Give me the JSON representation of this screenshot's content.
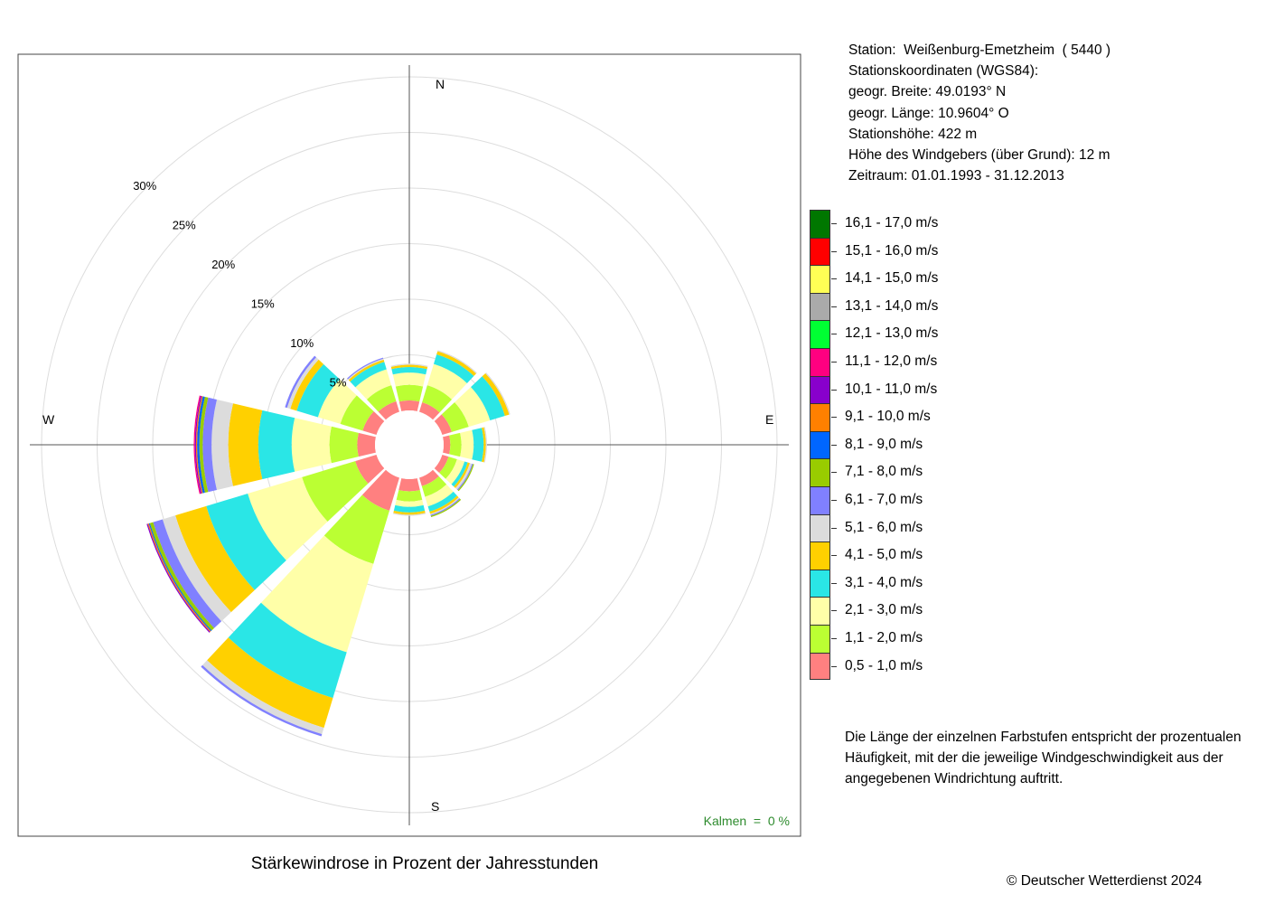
{
  "station_info": {
    "line1": "Station:  Weißenburg-Emetzheim  ( 5440 )",
    "line2": "Stationskoordinaten (WGS84):",
    "line3": "geogr. Breite: 49.0193° N",
    "line4": "geogr. Länge: 10.9604° O",
    "line5": "Stationshöhe: 422 m",
    "line6": "Höhe des Windgebers (über Grund): 12 m",
    "line7": "Zeitraum: 01.01.1993 - 31.12.2013"
  },
  "explanation": "Die Länge der einzelnen Farbstufen entspricht der prozentualen Häufigkeit, mit der die jeweilige Windgeschwindigkeit aus der angegebenen Windrichtung auftritt.",
  "copyright": "© Deutscher Wetterdienst  2024",
  "chart_data": {
    "type": "wind-rose",
    "title": "Stärkewindrose in Prozent der Jahresstunden",
    "calm_label": "Kalmen  =  0 %",
    "compass": {
      "N": "N",
      "E": "E",
      "S": "S",
      "W": "W"
    },
    "radial_ticks": [
      5,
      10,
      15,
      20,
      25,
      30
    ],
    "radial_tick_labels": [
      "5%",
      "10%",
      "15%",
      "20%",
      "25%",
      "30%"
    ],
    "radial_max": 30,
    "grid": true,
    "legend_position": "right",
    "speed_classes": [
      {
        "label": "0,5 - 1,0 m/s",
        "color": "#FF8080"
      },
      {
        "label": "1,1 - 2,0 m/s",
        "color": "#BBFF33"
      },
      {
        "label": "2,1 - 3,0 m/s",
        "color": "#FFFFA8"
      },
      {
        "label": "3,1 - 4,0 m/s",
        "color": "#2AE6E6"
      },
      {
        "label": "4,1 - 5,0 m/s",
        "color": "#FFD000"
      },
      {
        "label": "5,1 - 6,0 m/s",
        "color": "#DCDCDC"
      },
      {
        "label": "6,1 - 7,0 m/s",
        "color": "#8080FF"
      },
      {
        "label": "7,1 - 8,0 m/s",
        "color": "#99CC00"
      },
      {
        "label": "8,1 - 9,0 m/s",
        "color": "#0066FF"
      },
      {
        "label": "9,1 - 10,0 m/s",
        "color": "#FF8000"
      },
      {
        "label": "10,1 - 11,0 m/s",
        "color": "#8800CC"
      },
      {
        "label": "11,1 - 12,0 m/s",
        "color": "#FF0080"
      },
      {
        "label": "12,1 - 13,0 m/s",
        "color": "#00FF33"
      },
      {
        "label": "13,1 - 14,0 m/s",
        "color": "#AAAAAA"
      },
      {
        "label": "14,1 - 15,0 m/s",
        "color": "#FFFF55"
      },
      {
        "label": "15,1 - 16,0 m/s",
        "color": "#FF0000"
      },
      {
        "label": "16,1 - 17,0 m/s",
        "color": "#007700"
      }
    ],
    "sectors": [
      {
        "direction_deg": 0,
        "values": [
          0.9,
          1.4,
          1.1,
          0.5,
          0.2,
          0.1
        ]
      },
      {
        "direction_deg": 30,
        "values": [
          0.9,
          1.6,
          2.0,
          0.9,
          0.3,
          0.1
        ]
      },
      {
        "direction_deg": 60,
        "values": [
          0.9,
          1.6,
          2.0,
          1.4,
          0.4,
          0.1
        ]
      },
      {
        "direction_deg": 90,
        "values": [
          0.6,
          1.0,
          1.1,
          0.9,
          0.2,
          0.1
        ]
      },
      {
        "direction_deg": 120,
        "values": [
          0.6,
          0.8,
          0.7,
          0.3,
          0.2,
          0.2,
          0.1,
          0.1
        ]
      },
      {
        "direction_deg": 150,
        "values": [
          0.8,
          1.0,
          0.9,
          0.5,
          0.2,
          0.1,
          0.1,
          0.1
        ]
      },
      {
        "direction_deg": 180,
        "values": [
          1.1,
          0.9,
          0.5,
          0.5,
          0.2,
          0.1
        ]
      },
      {
        "direction_deg": 210,
        "values": [
          3.1,
          5.0,
          8.3,
          4.3,
          2.8,
          0.6,
          0.2
        ]
      },
      {
        "direction_deg": 240,
        "values": [
          2.0,
          5.0,
          5.1,
          3.9,
          2.9,
          1.2,
          0.9,
          0.3,
          0.1,
          0.1,
          0.1
        ]
      },
      {
        "direction_deg": 270,
        "values": [
          1.6,
          2.5,
          3.4,
          3.0,
          2.7,
          1.5,
          0.8,
          0.3,
          0.2,
          0.1,
          0.1,
          0.1
        ]
      },
      {
        "direction_deg": 300,
        "values": [
          1.3,
          2.1,
          2.1,
          2.0,
          0.6,
          0.3,
          0.2
        ]
      },
      {
        "direction_deg": 330,
        "values": [
          1.0,
          1.5,
          1.5,
          0.7,
          0.2,
          0.1,
          0.1
        ]
      }
    ]
  }
}
